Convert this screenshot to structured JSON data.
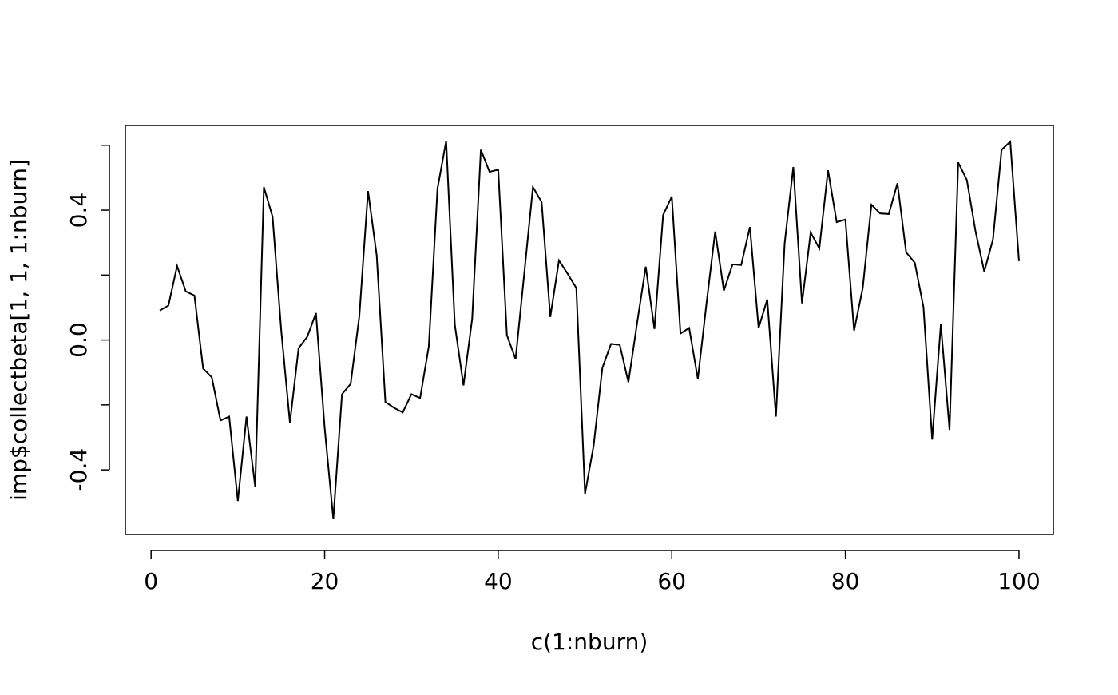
{
  "chart_data": {
    "type": "line",
    "xlabel": "c(1:nburn)",
    "ylabel": "imp$collectbeta[1, 1, 1:nburn]",
    "x": [
      1,
      2,
      3,
      4,
      5,
      6,
      7,
      8,
      9,
      10,
      11,
      12,
      13,
      14,
      15,
      16,
      17,
      18,
      19,
      20,
      21,
      22,
      23,
      24,
      25,
      26,
      27,
      28,
      29,
      30,
      31,
      32,
      33,
      34,
      35,
      36,
      37,
      38,
      39,
      40,
      41,
      42,
      43,
      44,
      45,
      46,
      47,
      48,
      49,
      50,
      51,
      52,
      53,
      54,
      55,
      56,
      57,
      58,
      59,
      60,
      61,
      62,
      63,
      64,
      65,
      66,
      67,
      68,
      69,
      70,
      71,
      72,
      73,
      74,
      75,
      76,
      77,
      78,
      79,
      80,
      81,
      82,
      83,
      84,
      85,
      86,
      87,
      88,
      89,
      90,
      91,
      92,
      93,
      94,
      95,
      96,
      97,
      98,
      99,
      100
    ],
    "values": [
      0.091,
      0.106,
      0.228,
      0.15,
      0.137,
      -0.088,
      -0.115,
      -0.248,
      -0.236,
      -0.496,
      -0.236,
      -0.452,
      0.471,
      0.38,
      0.029,
      -0.255,
      -0.025,
      0.01,
      0.083,
      -0.27,
      -0.552,
      -0.167,
      -0.135,
      0.074,
      0.459,
      0.26,
      -0.191,
      -0.209,
      -0.223,
      -0.167,
      -0.179,
      -0.02,
      0.466,
      0.613,
      0.047,
      -0.14,
      0.066,
      0.586,
      0.518,
      0.525,
      0.015,
      -0.059,
      0.205,
      0.471,
      0.425,
      0.071,
      0.245,
      0.204,
      0.16,
      -0.474,
      -0.324,
      -0.086,
      -0.012,
      -0.015,
      -0.13,
      0.052,
      0.226,
      0.034,
      0.385,
      0.442,
      0.02,
      0.037,
      -0.12,
      0.113,
      0.334,
      0.152,
      0.233,
      0.231,
      0.348,
      0.037,
      0.125,
      -0.236,
      0.297,
      0.533,
      0.113,
      0.331,
      0.282,
      0.523,
      0.363,
      0.371,
      0.029,
      0.16,
      0.417,
      0.39,
      0.388,
      0.483,
      0.27,
      0.238,
      0.101,
      -0.307,
      0.049,
      -0.277,
      0.547,
      0.493,
      0.334,
      0.211,
      0.309,
      0.586,
      0.611,
      0.243
    ],
    "color": "#000000",
    "xlim": [
      -2.96,
      103.96
    ],
    "ylim": [
      -0.599,
      0.661
    ],
    "xticks": [
      0,
      20,
      40,
      60,
      80,
      100
    ],
    "yticks": [
      -0.4,
      {
        "value": 0,
        "label": "0.0"
      },
      0.4
    ],
    "yticks_unlabeled": [
      -0.2,
      0.2,
      0.6
    ]
  }
}
